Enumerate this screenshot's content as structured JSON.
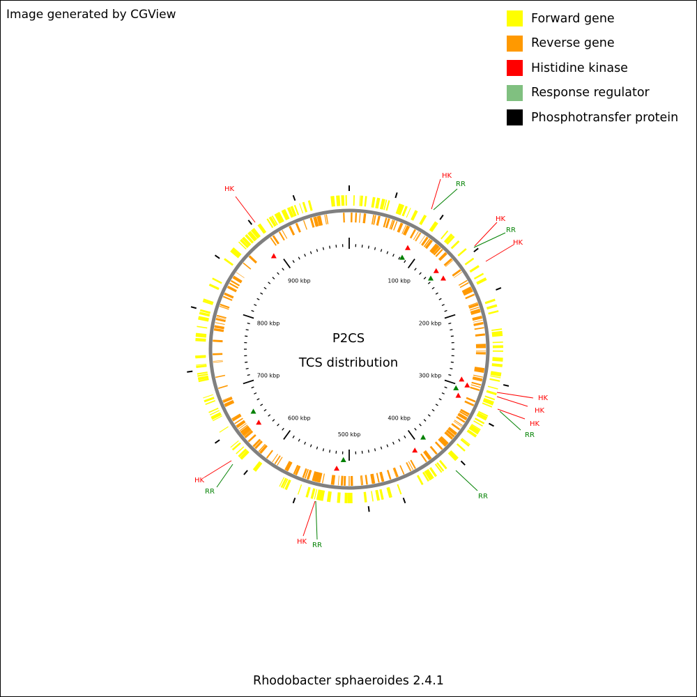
{
  "credit": "Image generated by CGView",
  "footer": "Rhodobacter sphaeroides 2.4.1",
  "center": {
    "line1": "P2CS",
    "line2": "TCS distribution"
  },
  "legend": [
    {
      "label": "Forward gene",
      "color": "#ffff00"
    },
    {
      "label": "Reverse gene",
      "color": "#ff9900"
    },
    {
      "label": "Histidine kinase",
      "color": "#ff0000"
    },
    {
      "label": "Response regulator",
      "color": "#80c080"
    },
    {
      "label": "Phosphotransfer protein",
      "color": "#000000"
    }
  ],
  "colors": {
    "forward": "#ffff00",
    "reverse": "#ff9900",
    "hk": "#ff0000",
    "rr": "#008000",
    "backbone": "#808080",
    "tick": "#000000"
  },
  "tick_labels": [
    "100 kbp",
    "200 kbp",
    "300 kbp",
    "400 kbp",
    "500 kbp",
    "600 kbp",
    "700 kbp",
    "800 kbp",
    "900 kbp"
  ],
  "callouts": [
    {
      "label": "HK",
      "type": "hk"
    },
    {
      "label": "RR",
      "type": "rr"
    },
    {
      "label": "HK",
      "type": "hk"
    },
    {
      "label": "RR",
      "type": "rr"
    },
    {
      "label": "HK",
      "type": "hk"
    },
    {
      "label": "HK",
      "type": "hk"
    },
    {
      "label": "HK",
      "type": "hk"
    },
    {
      "label": "HK",
      "type": "hk"
    },
    {
      "label": "RR",
      "type": "rr"
    },
    {
      "label": "RR",
      "type": "rr"
    },
    {
      "label": "HK",
      "type": "hk"
    },
    {
      "label": "RR",
      "type": "rr"
    },
    {
      "label": "HK",
      "type": "hk"
    },
    {
      "label": "RR",
      "type": "rr"
    },
    {
      "label": "HK",
      "type": "hk"
    }
  ]
}
